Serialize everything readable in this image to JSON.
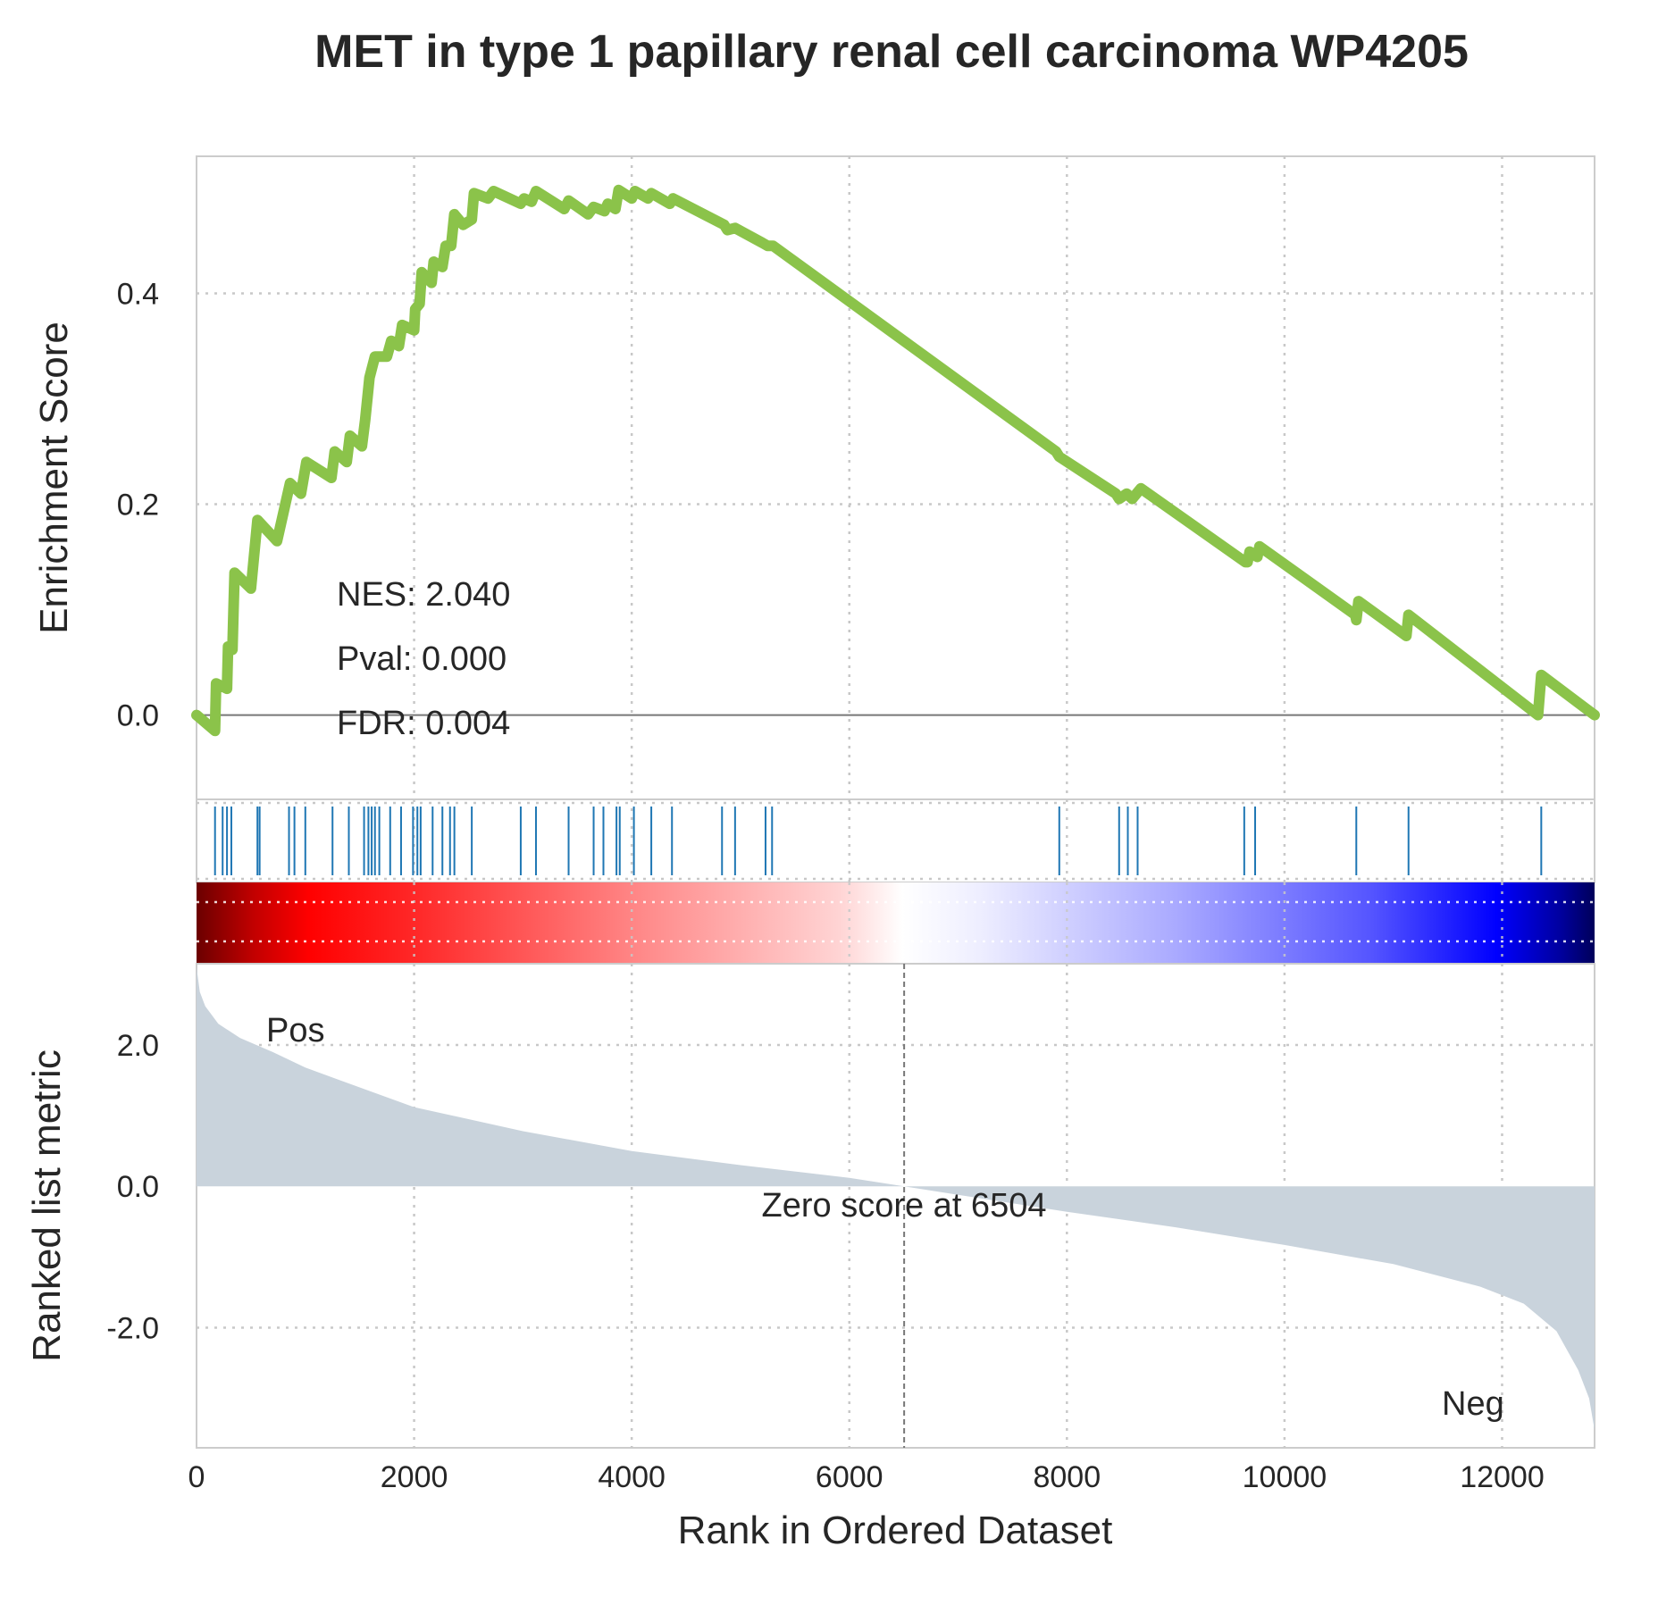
{
  "chart_data": {
    "type": "line",
    "title": "MET in type 1 papillary renal cell carcinoma WP4205",
    "xlabel": "Rank in Ordered Dataset",
    "xlim": [
      0,
      12850
    ],
    "x_ticks": [
      "0",
      "2000",
      "4000",
      "6000",
      "8000",
      "10000",
      "12000"
    ],
    "colors": {
      "es_line": "#8bc34a",
      "hits": "#1f77b4",
      "ranked_fill": "#c9d3dc",
      "pos_label": "#ff0000",
      "neg_label": "#0000ff",
      "text": "#262626"
    },
    "enrichment_panel": {
      "ylabel": "Enrichment Score",
      "ylim": [
        -0.08,
        0.53
      ],
      "y_ticks": [
        "0.0",
        "0.2",
        "0.4"
      ],
      "stats": {
        "nes": "NES: 2.040",
        "pval": "Pval: 0.000",
        "fdr": "FDR: 0.004"
      },
      "running_es": [
        [
          0,
          0.0
        ],
        [
          170,
          -0.015
        ],
        [
          180,
          0.03
        ],
        [
          280,
          0.025
        ],
        [
          290,
          0.065
        ],
        [
          330,
          0.062
        ],
        [
          340,
          0.1
        ],
        [
          350,
          0.135
        ],
        [
          500,
          0.12
        ],
        [
          560,
          0.185
        ],
        [
          740,
          0.165
        ],
        [
          860,
          0.22
        ],
        [
          960,
          0.21
        ],
        [
          1010,
          0.24
        ],
        [
          1240,
          0.225
        ],
        [
          1270,
          0.25
        ],
        [
          1380,
          0.24
        ],
        [
          1410,
          0.265
        ],
        [
          1520,
          0.255
        ],
        [
          1550,
          0.28
        ],
        [
          1590,
          0.32
        ],
        [
          1640,
          0.34
        ],
        [
          1750,
          0.34
        ],
        [
          1790,
          0.355
        ],
        [
          1860,
          0.35
        ],
        [
          1890,
          0.37
        ],
        [
          2000,
          0.365
        ],
        [
          2010,
          0.385
        ],
        [
          2050,
          0.39
        ],
        [
          2070,
          0.42
        ],
        [
          2160,
          0.41
        ],
        [
          2180,
          0.43
        ],
        [
          2260,
          0.425
        ],
        [
          2290,
          0.445
        ],
        [
          2340,
          0.445
        ],
        [
          2370,
          0.475
        ],
        [
          2450,
          0.465
        ],
        [
          2530,
          0.47
        ],
        [
          2550,
          0.495
        ],
        [
          2680,
          0.49
        ],
        [
          2730,
          0.497
        ],
        [
          2980,
          0.485
        ],
        [
          3010,
          0.49
        ],
        [
          3080,
          0.487
        ],
        [
          3120,
          0.497
        ],
        [
          3380,
          0.48
        ],
        [
          3420,
          0.488
        ],
        [
          3600,
          0.475
        ],
        [
          3650,
          0.482
        ],
        [
          3750,
          0.478
        ],
        [
          3780,
          0.485
        ],
        [
          3850,
          0.48
        ],
        [
          3880,
          0.498
        ],
        [
          4000,
          0.49
        ],
        [
          4030,
          0.497
        ],
        [
          4150,
          0.49
        ],
        [
          4180,
          0.495
        ],
        [
          4350,
          0.485
        ],
        [
          4380,
          0.49
        ],
        [
          4850,
          0.465
        ],
        [
          4880,
          0.46
        ],
        [
          4950,
          0.462
        ],
        [
          5200,
          0.448
        ],
        [
          5250,
          0.445
        ],
        [
          5300,
          0.445
        ],
        [
          7900,
          0.25
        ],
        [
          7930,
          0.245
        ],
        [
          8450,
          0.21
        ],
        [
          8480,
          0.205
        ],
        [
          8550,
          0.21
        ],
        [
          8600,
          0.205
        ],
        [
          8680,
          0.215
        ],
        [
          9640,
          0.145
        ],
        [
          9660,
          0.145
        ],
        [
          9680,
          0.155
        ],
        [
          9750,
          0.15
        ],
        [
          9770,
          0.16
        ],
        [
          10650,
          0.095
        ],
        [
          10660,
          0.09
        ],
        [
          10680,
          0.108
        ],
        [
          11120,
          0.075
        ],
        [
          11140,
          0.095
        ],
        [
          12330,
          0.0
        ],
        [
          12360,
          0.038
        ],
        [
          12850,
          0.0
        ]
      ]
    },
    "hits": [
      170,
      240,
      280,
      320,
      560,
      580,
      850,
      900,
      1000,
      1250,
      1400,
      1540,
      1580,
      1610,
      1640,
      1680,
      1780,
      1880,
      1990,
      2030,
      2060,
      2170,
      2260,
      2330,
      2370,
      2530,
      2980,
      3120,
      3420,
      3650,
      3740,
      3860,
      3890,
      4020,
      4180,
      4370,
      4830,
      4950,
      5230,
      5290,
      7930,
      8480,
      8560,
      8650,
      9630,
      9730,
      10660,
      11140,
      12360
    ],
    "ranked_panel": {
      "ylabel": "Ranked list metric",
      "ylim": [
        -3.7,
        3.15
      ],
      "y_ticks": [
        "2.0",
        "0.0",
        "-2.0"
      ],
      "pos_label": "Pos",
      "neg_label": "Neg",
      "zero_label": "Zero score at 6504",
      "zero_rank": 6504,
      "metric_curve": [
        [
          0,
          3.1
        ],
        [
          30,
          2.75
        ],
        [
          80,
          2.55
        ],
        [
          200,
          2.3
        ],
        [
          400,
          2.1
        ],
        [
          700,
          1.9
        ],
        [
          1000,
          1.68
        ],
        [
          1500,
          1.4
        ],
        [
          2000,
          1.12
        ],
        [
          3000,
          0.78
        ],
        [
          4000,
          0.5
        ],
        [
          5000,
          0.3
        ],
        [
          6000,
          0.12
        ],
        [
          6504,
          0.0
        ],
        [
          7000,
          -0.12
        ],
        [
          8000,
          -0.36
        ],
        [
          9000,
          -0.58
        ],
        [
          10000,
          -0.83
        ],
        [
          11000,
          -1.1
        ],
        [
          11800,
          -1.42
        ],
        [
          12200,
          -1.66
        ],
        [
          12500,
          -2.05
        ],
        [
          12700,
          -2.6
        ],
        [
          12800,
          -3.0
        ],
        [
          12850,
          -3.45
        ]
      ]
    }
  }
}
